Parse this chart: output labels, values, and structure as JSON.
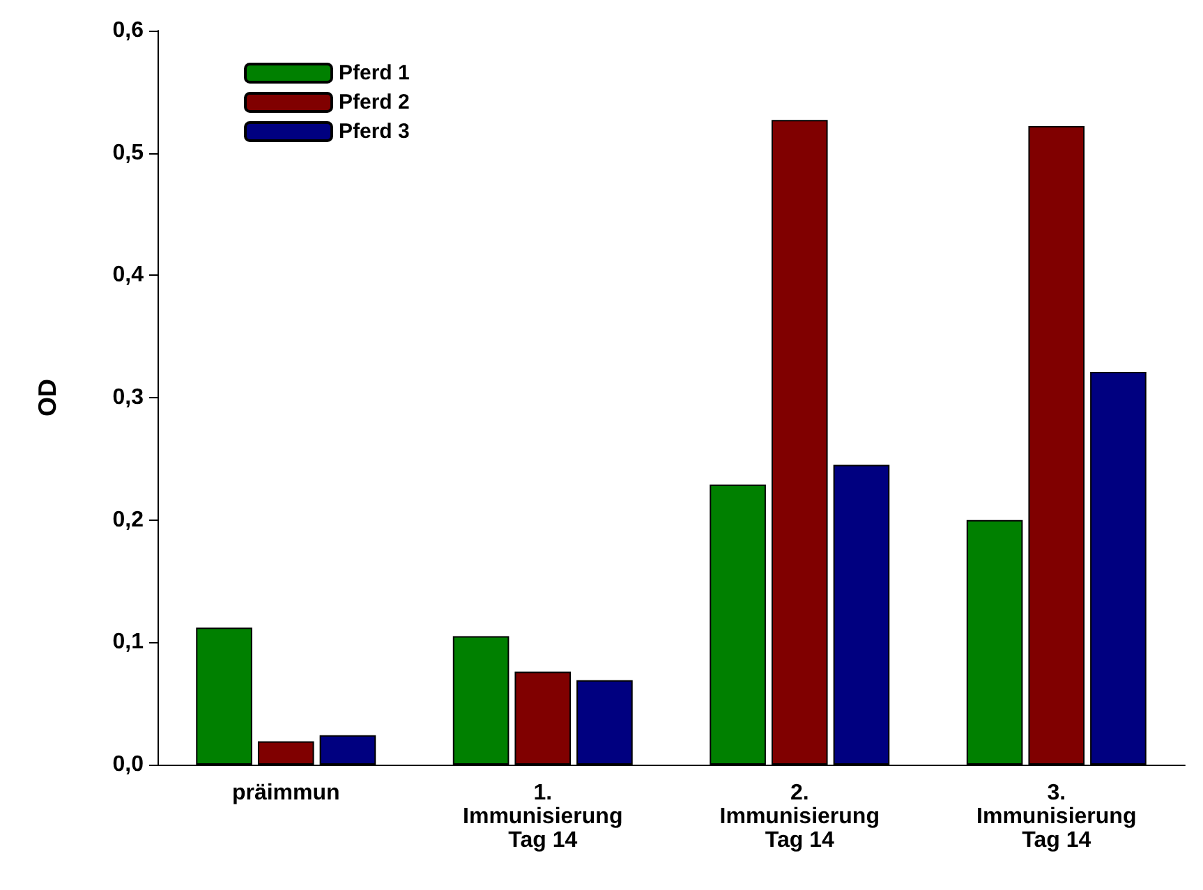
{
  "chart_data": {
    "type": "bar",
    "ylabel": "OD",
    "categories": [
      "präimmun",
      "1.\nImmunisierung\nTag 14",
      "2.\nImmunisierung\nTag 14",
      "3.\nImmunisierung\nTag 14"
    ],
    "series": [
      {
        "name": "Pferd 1",
        "color": "#008000",
        "values": [
          0.112,
          0.105,
          0.229,
          0.2
        ]
      },
      {
        "name": "Pferd 2",
        "color": "#800000",
        "values": [
          0.019,
          0.076,
          0.527,
          0.522
        ]
      },
      {
        "name": "Pferd 3",
        "color": "#000080",
        "values": [
          0.024,
          0.069,
          0.245,
          0.321
        ]
      }
    ],
    "ylim": [
      0,
      0.6
    ],
    "yticks": [
      {
        "value": 0,
        "label": "0,0"
      },
      {
        "value": 0.1,
        "label": "0,1"
      },
      {
        "value": 0.2,
        "label": "0,2"
      },
      {
        "value": 0.3,
        "label": "0,3"
      },
      {
        "value": 0.4,
        "label": "0,4"
      },
      {
        "value": 0.5,
        "label": "0,5"
      },
      {
        "value": 0.6,
        "label": "0,6"
      }
    ],
    "grid": false,
    "legend": "top left"
  }
}
